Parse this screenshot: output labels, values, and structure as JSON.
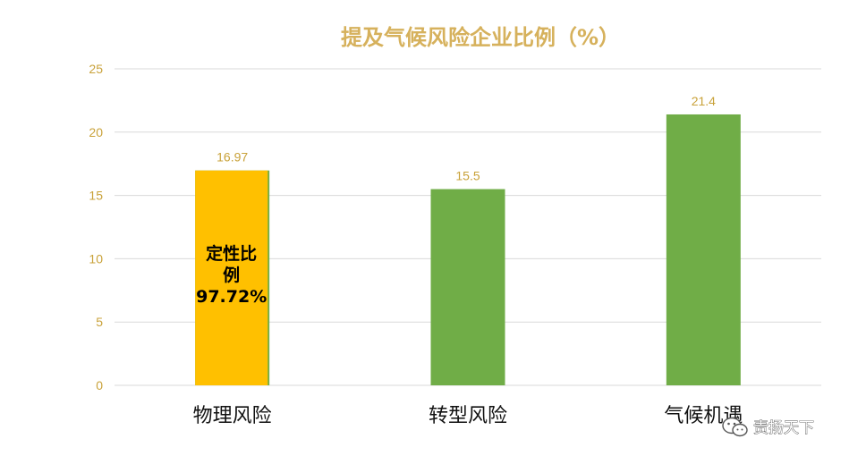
{
  "chart_data": {
    "type": "bar",
    "title": "提及气候风险企业比例（%）",
    "categories": [
      "物理风险",
      "转型风险",
      "气候机遇"
    ],
    "values": [
      16.97,
      15.5,
      21.4
    ],
    "data_labels": [
      "16.97",
      "15.5",
      "21.4"
    ],
    "yticks": [
      "0",
      "5",
      "10",
      "15",
      "20",
      "25"
    ],
    "ylim": [
      0,
      25
    ],
    "grid": true,
    "legend": "none",
    "colors": {
      "bar": "#70ad47",
      "highlight": "#ffc000",
      "title": "#d6b15c",
      "tick": "#c9a23a",
      "grid": "#d9d9d9"
    },
    "highlight_index": 0,
    "annotation": {
      "lines": [
        "定性比",
        "例",
        "97.72%"
      ],
      "value": 97.72,
      "fill_fraction": 0.9772
    }
  },
  "watermark": {
    "text": "责扬天下",
    "icon": "wechat-icon"
  }
}
